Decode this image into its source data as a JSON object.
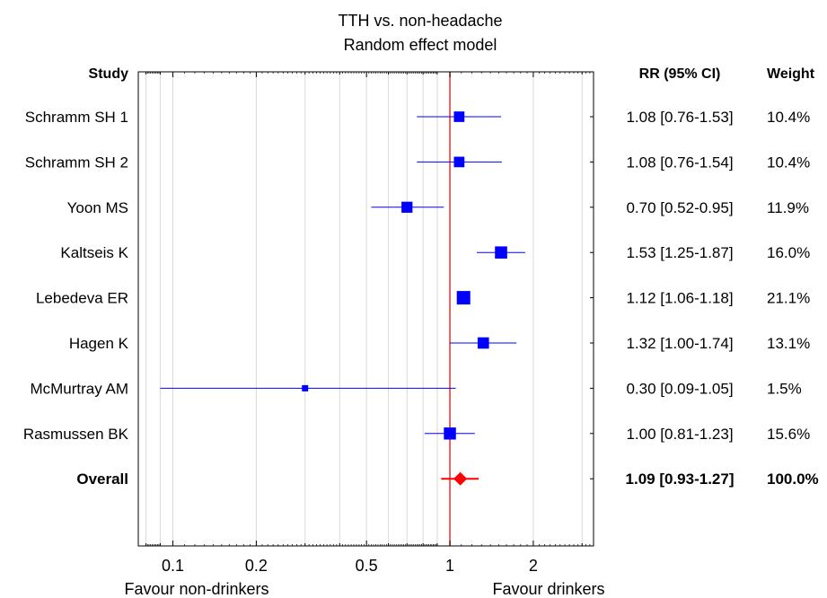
{
  "chart_data": {
    "type": "forest",
    "title": "TTH vs. non-headache",
    "subtitle": "Random effect model",
    "columns": {
      "study": "Study",
      "rr": "RR (95% CI)",
      "weight": "Weight"
    },
    "x_scale": "log",
    "xlim": [
      0.075,
      3.3
    ],
    "x_ticks": [
      {
        "value": 0.1,
        "label": "0.1"
      },
      {
        "value": 0.2,
        "label": "0.2"
      },
      {
        "value": 0.5,
        "label": "0.5"
      },
      {
        "value": 1,
        "label": "1"
      },
      {
        "value": 2,
        "label": "2"
      }
    ],
    "null_line": 1,
    "grid": true,
    "colors": {
      "study_marker": "#0000ff",
      "overall_marker": "#ff0000",
      "null_line": "#e03030",
      "grid": "#d9d9d9"
    },
    "studies": [
      {
        "name": "Schramm SH 1",
        "rr": 1.08,
        "low": 0.76,
        "high": 1.53,
        "label": "1.08 [0.76-1.53]",
        "weight": 10.4,
        "weight_label": "10.4%"
      },
      {
        "name": "Schramm SH 2",
        "rr": 1.08,
        "low": 0.76,
        "high": 1.54,
        "label": "1.08 [0.76-1.54]",
        "weight": 10.4,
        "weight_label": "10.4%"
      },
      {
        "name": "Yoon MS",
        "rr": 0.7,
        "low": 0.52,
        "high": 0.95,
        "label": "0.70 [0.52-0.95]",
        "weight": 11.9,
        "weight_label": "11.9%"
      },
      {
        "name": "Kaltseis K",
        "rr": 1.53,
        "low": 1.25,
        "high": 1.87,
        "label": "1.53 [1.25-1.87]",
        "weight": 16.0,
        "weight_label": "16.0%"
      },
      {
        "name": "Lebedeva ER",
        "rr": 1.12,
        "low": 1.06,
        "high": 1.18,
        "label": "1.12 [1.06-1.18]",
        "weight": 21.1,
        "weight_label": "21.1%"
      },
      {
        "name": "Hagen K",
        "rr": 1.32,
        "low": 1.0,
        "high": 1.74,
        "label": "1.32 [1.00-1.74]",
        "weight": 13.1,
        "weight_label": "13.1%"
      },
      {
        "name": "McMurtray AM",
        "rr": 0.3,
        "low": 0.09,
        "high": 1.05,
        "label": "0.30 [0.09-1.05]",
        "weight": 1.5,
        "weight_label": "1.5%"
      },
      {
        "name": "Rasmussen BK",
        "rr": 1.0,
        "low": 0.81,
        "high": 1.23,
        "label": "1.00 [0.81-1.23]",
        "weight": 15.6,
        "weight_label": "15.6%"
      }
    ],
    "overall": {
      "name": "Overall",
      "rr": 1.09,
      "low": 0.93,
      "high": 1.27,
      "label": "1.09 [0.93-1.27]",
      "weight_label": "100.0%"
    },
    "favour_left": "Favour non-drinkers",
    "favour_right": "Favour drinkers"
  }
}
